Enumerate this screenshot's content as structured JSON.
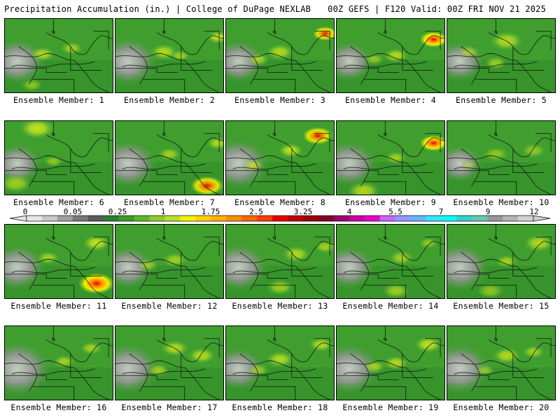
{
  "header": {
    "title_left": "Precipitation Accumulation (in.) | College of DuPage NEXLAB",
    "title_right": "00Z GEFS | F120 Valid: 00Z FRI NOV 21 2025"
  },
  "members": [
    {
      "label": "Ensemble Member: 1",
      "spots": [
        [
          0.35,
          0.48,
          0.09,
          0.7
        ],
        [
          0.62,
          0.4,
          0.08,
          0.6
        ],
        [
          0.25,
          0.9,
          0.08,
          0.5
        ]
      ],
      "gray": 0.5
    },
    {
      "label": "Ensemble Member: 2",
      "spots": [
        [
          0.45,
          0.45,
          0.1,
          0.7
        ],
        [
          0.95,
          0.25,
          0.08,
          0.8
        ],
        [
          0.6,
          0.5,
          0.07,
          0.6
        ]
      ],
      "gray": 0.6
    },
    {
      "label": "Ensemble Member: 3",
      "spots": [
        [
          0.5,
          0.45,
          0.1,
          0.7
        ],
        [
          0.92,
          0.2,
          0.09,
          0.9
        ],
        [
          0.3,
          0.55,
          0.08,
          0.6
        ]
      ],
      "gray": 0.4
    },
    {
      "label": "Ensemble Member: 4",
      "spots": [
        [
          0.9,
          0.28,
          0.1,
          1.0
        ],
        [
          0.55,
          0.5,
          0.09,
          0.7
        ],
        [
          0.35,
          0.55,
          0.07,
          0.5
        ]
      ],
      "gray": 0.3
    },
    {
      "label": "Ensemble Member: 5",
      "spots": [
        [
          0.55,
          0.3,
          0.12,
          0.7
        ],
        [
          0.45,
          0.6,
          0.08,
          0.6
        ],
        [
          0.2,
          0.45,
          0.08,
          0.5
        ]
      ],
      "gray": 0.3
    },
    {
      "label": "Ensemble Member: 6",
      "spots": [
        [
          0.3,
          0.1,
          0.13,
          0.8
        ],
        [
          0.1,
          0.85,
          0.12,
          0.6
        ],
        [
          0.45,
          0.55,
          0.07,
          0.5
        ]
      ],
      "gray": 0.3
    },
    {
      "label": "Ensemble Member: 7",
      "spots": [
        [
          0.85,
          0.88,
          0.12,
          0.9
        ],
        [
          0.95,
          0.3,
          0.08,
          0.7
        ],
        [
          0.5,
          0.45,
          0.08,
          0.6
        ]
      ],
      "gray": 0.6
    },
    {
      "label": "Ensemble Member: 8",
      "spots": [
        [
          0.85,
          0.2,
          0.11,
          0.9
        ],
        [
          0.6,
          0.4,
          0.09,
          0.8
        ],
        [
          0.25,
          0.6,
          0.08,
          0.6
        ]
      ],
      "gray": 0.7
    },
    {
      "label": "Ensemble Member: 9",
      "spots": [
        [
          0.9,
          0.3,
          0.1,
          1.0
        ],
        [
          0.25,
          0.95,
          0.12,
          0.7
        ],
        [
          0.55,
          0.5,
          0.08,
          0.6
        ]
      ],
      "gray": 0.5
    },
    {
      "label": "Ensemble Member: 10",
      "spots": [
        [
          0.45,
          0.45,
          0.09,
          0.5
        ],
        [
          0.8,
          0.4,
          0.09,
          0.5
        ],
        [
          0.2,
          0.6,
          0.06,
          0.4
        ]
      ],
      "gray": 0.2
    },
    {
      "label": "Ensemble Member: 11",
      "spots": [
        [
          0.85,
          0.8,
          0.13,
          1.0
        ],
        [
          0.85,
          0.25,
          0.1,
          0.8
        ],
        [
          0.4,
          0.45,
          0.08,
          0.6
        ]
      ],
      "gray": 0.5
    },
    {
      "label": "Ensemble Member: 12",
      "spots": [
        [
          0.55,
          0.48,
          0.09,
          0.6
        ],
        [
          0.3,
          0.55,
          0.08,
          0.5
        ]
      ],
      "gray": 0.4
    },
    {
      "label": "Ensemble Member: 13",
      "spots": [
        [
          0.65,
          0.4,
          0.1,
          0.7
        ],
        [
          0.92,
          0.3,
          0.08,
          0.6
        ],
        [
          0.5,
          0.85,
          0.1,
          0.6
        ]
      ],
      "gray": 0.6
    },
    {
      "label": "Ensemble Member: 14",
      "spots": [
        [
          0.6,
          0.45,
          0.09,
          0.6
        ],
        [
          0.85,
          0.25,
          0.07,
          0.5
        ],
        [
          0.55,
          0.9,
          0.1,
          0.6
        ]
      ],
      "gray": 0.4
    },
    {
      "label": "Ensemble Member: 15",
      "spots": [
        [
          0.85,
          0.25,
          0.11,
          0.7
        ],
        [
          0.55,
          0.5,
          0.08,
          0.6
        ],
        [
          0.4,
          0.9,
          0.1,
          0.5
        ]
      ],
      "gray": 0.6
    },
    {
      "label": "Ensemble Member: 16",
      "spots": [
        [
          0.55,
          0.48,
          0.08,
          0.6
        ],
        [
          0.8,
          0.3,
          0.08,
          0.6
        ]
      ],
      "gray": 0.9
    },
    {
      "label": "Ensemble Member: 17",
      "spots": [
        [
          0.55,
          0.3,
          0.1,
          0.7
        ],
        [
          0.8,
          0.4,
          0.1,
          0.7
        ],
        [
          0.4,
          0.6,
          0.08,
          0.6
        ]
      ],
      "gray": 0.7
    },
    {
      "label": "Ensemble Member: 18",
      "spots": [
        [
          0.5,
          0.45,
          0.1,
          0.7
        ],
        [
          0.88,
          0.25,
          0.09,
          0.7
        ],
        [
          0.3,
          0.6,
          0.08,
          0.5
        ]
      ],
      "gray": 0.4
    },
    {
      "label": "Ensemble Member: 19",
      "spots": [
        [
          0.85,
          0.25,
          0.1,
          0.8
        ],
        [
          0.55,
          0.5,
          0.09,
          0.7
        ],
        [
          0.35,
          0.55,
          0.08,
          0.6
        ]
      ],
      "gray": 0.7
    },
    {
      "label": "Ensemble Member: 20",
      "spots": [
        [
          0.55,
          0.4,
          0.1,
          0.7
        ],
        [
          0.8,
          0.35,
          0.08,
          0.6
        ],
        [
          0.35,
          0.6,
          0.07,
          0.5
        ]
      ],
      "gray": 0.7
    }
  ],
  "colorbar": {
    "tick_labels": [
      "0",
      "0.05",
      "0.25",
      "1",
      "1.75",
      "2.5",
      "3.25",
      "4",
      "5.5",
      "7",
      "9",
      "12"
    ],
    "colors": [
      "#e6e6e6",
      "#c8c8c8",
      "#a0a0a0",
      "#787878",
      "#5a5a5a",
      "#2e7d32",
      "#3a9a2a",
      "#5cb82c",
      "#8ccc2a",
      "#b8e02a",
      "#f2f200",
      "#ffd000",
      "#ffb000",
      "#ff8c00",
      "#ff6400",
      "#ff3c00",
      "#e60000",
      "#c00000",
      "#9c0000",
      "#800020",
      "#9c0070",
      "#c800a0",
      "#e600c8",
      "#c864ff",
      "#9696ff",
      "#64b4ff",
      "#32e6ff",
      "#00ffff",
      "#32d2c8",
      "#64c8b4",
      "#969696",
      "#b4b4b4",
      "#d2d2d2"
    ]
  }
}
